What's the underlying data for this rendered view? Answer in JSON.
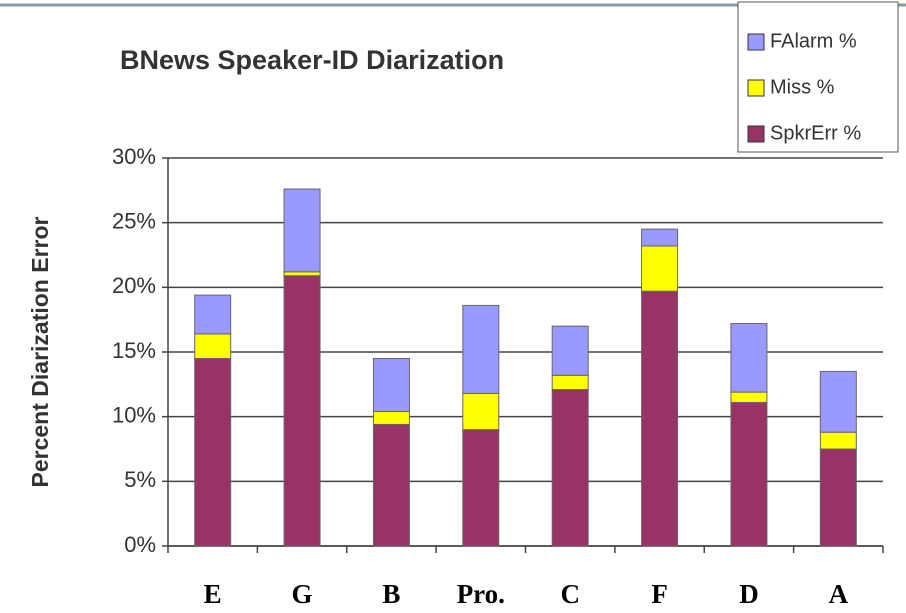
{
  "chart_data": {
    "type": "stacked_bar",
    "title": "BNews Speaker-ID Diarization",
    "y_label": "Percent Diarization Error",
    "categories": [
      "E",
      "G",
      "B",
      "Pro.",
      "C",
      "F",
      "D",
      "A"
    ],
    "series": [
      {
        "name": "SpkrErr %",
        "color": "#993366",
        "values": [
          14.5,
          20.9,
          9.4,
          9.0,
          12.1,
          19.7,
          11.1,
          7.5
        ]
      },
      {
        "name": "Miss %",
        "color": "#ffff00",
        "values": [
          1.9,
          0.3,
          1.0,
          2.8,
          1.1,
          3.5,
          0.8,
          1.3
        ]
      },
      {
        "name": "FAlarm %",
        "color": "#9999ff",
        "values": [
          3.0,
          6.4,
          4.1,
          6.8,
          3.8,
          1.3,
          5.3,
          4.7
        ]
      }
    ],
    "ylim": [
      0,
      30
    ],
    "yticks": [
      {
        "value": 0,
        "label": "0%"
      },
      {
        "value": 5,
        "label": "5%"
      },
      {
        "value": 10,
        "label": "10%"
      },
      {
        "value": 15,
        "label": "15%"
      },
      {
        "value": 20,
        "label": "20%"
      },
      {
        "value": 25,
        "label": "25%"
      },
      {
        "value": 30,
        "label": "30%"
      }
    ],
    "grid": true,
    "legend": "top-right"
  }
}
